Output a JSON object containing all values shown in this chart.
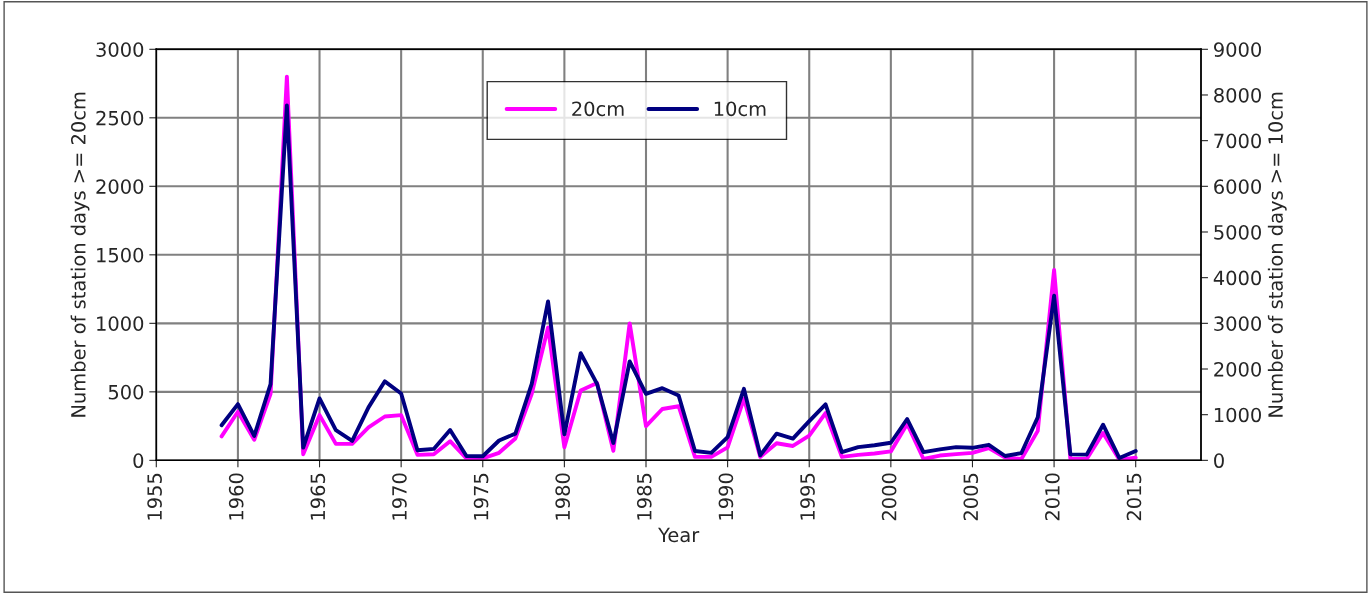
{
  "chart_data": {
    "type": "line",
    "xlabel": "Year",
    "ylabel": "Number of station days >= 20cm",
    "y2label": "Number of station days >= 10cm",
    "x": [
      1959,
      1960,
      1961,
      1962,
      1963,
      1964,
      1965,
      1966,
      1967,
      1968,
      1969,
      1970,
      1971,
      1972,
      1973,
      1974,
      1975,
      1976,
      1977,
      1978,
      1979,
      1980,
      1981,
      1982,
      1983,
      1984,
      1985,
      1986,
      1987,
      1988,
      1989,
      1990,
      1991,
      1992,
      1993,
      1994,
      1995,
      1996,
      1997,
      1998,
      1999,
      2000,
      2001,
      2002,
      2003,
      2004,
      2005,
      2006,
      2007,
      2008,
      2009,
      2010,
      2011,
      2012,
      2013,
      2014,
      2015
    ],
    "series": [
      {
        "name": "20cm",
        "color": "#ff00ff",
        "values": [
          175,
          355,
          150,
          485,
          2800,
          45,
          330,
          120,
          120,
          240,
          320,
          330,
          40,
          45,
          140,
          15,
          15,
          55,
          160,
          485,
          970,
          95,
          510,
          565,
          70,
          1000,
          250,
          375,
          395,
          25,
          25,
          95,
          450,
          25,
          125,
          105,
          180,
          345,
          25,
          40,
          50,
          65,
          265,
          10,
          35,
          45,
          55,
          90,
          20,
          10,
          215,
          1390,
          10,
          10,
          200,
          5,
          20
        ]
      },
      {
        "name": "10cm",
        "color": "#000080",
        "axis": "y2",
        "values": [
          770,
          1230,
          535,
          1670,
          7770,
          280,
          1355,
          660,
          425,
          1160,
          1730,
          1465,
          220,
          250,
          665,
          95,
          90,
          435,
          585,
          1675,
          3480,
          570,
          2345,
          1675,
          380,
          2165,
          1455,
          1580,
          1420,
          205,
          165,
          510,
          1565,
          110,
          585,
          475,
          860,
          1225,
          180,
          290,
          330,
          385,
          905,
          180,
          240,
          290,
          275,
          340,
          95,
          160,
          945,
          3605,
          130,
          125,
          780,
          50,
          205
        ]
      }
    ],
    "xlim": [
      1955,
      2019
    ],
    "xticks": [
      1955,
      1960,
      1965,
      1970,
      1975,
      1980,
      1985,
      1990,
      1995,
      2000,
      2005,
      2010,
      2015
    ],
    "ylim": [
      0,
      3000
    ],
    "yticks": [
      0,
      500,
      1000,
      1500,
      2000,
      2500,
      3000
    ],
    "y2lim": [
      0,
      9000
    ],
    "y2ticks": [
      0,
      1000,
      2000,
      3000,
      4000,
      5000,
      6000,
      7000,
      8000,
      9000
    ],
    "grid": true,
    "legend": "top",
    "marker": "none",
    "line_style": "solid"
  }
}
